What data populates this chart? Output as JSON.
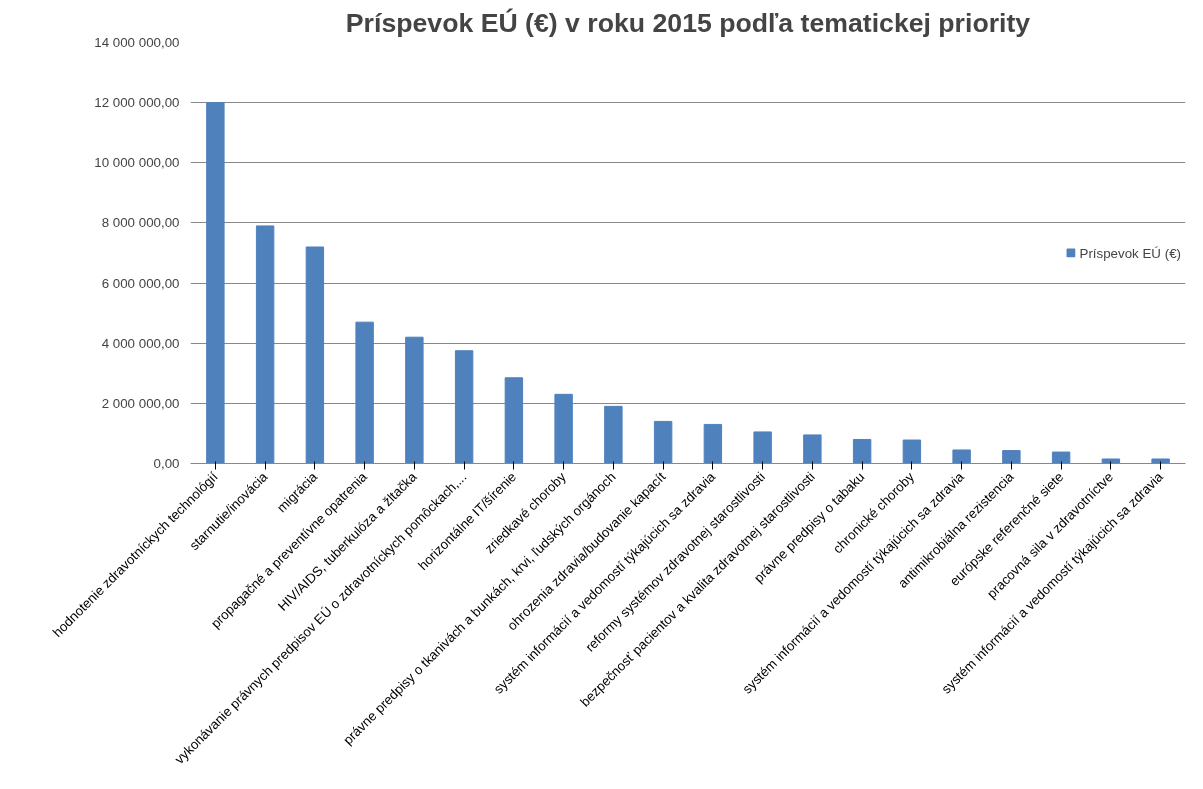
{
  "chart_data": {
    "type": "bar",
    "title": "Príspevok EÚ (€) v roku 2015 podľa tematickej priority",
    "categories": [
      "hodnotenie zdravotníckych technológií",
      "starnutie/inovácia",
      "migrácia",
      "propagačné a preventívne opatrenia",
      "HIV/AIDS, tuberkulóza a žltačka",
      "vykonávanie právnych predpisov EÚ o zdravotníckych pomôckach,...",
      "horizontálne IT/šírenie",
      "zriedkavé choroby",
      "právne predpisy o tkanivách a bunkách, krvi, ľudských orgánoch",
      "ohrozenia zdravia/budovanie kapacít",
      "systém informácií a vedomostí týkajúcich sa zdravia",
      "reformy systémov zdravotnej starostlivosti",
      "bezpečnosť pacientov a kvalita zdravotnej starostlivosti",
      "právne predpisy o tabaku",
      "chronické choroby",
      "systém informácií a vedomostí týkajúcich sa zdravia",
      "antimikrobiálna rezistencia",
      "európske referenčné siete",
      "pracovná sila v zdravotníctve",
      "systém informácií a vedomostí týkajúcich sa zdravia"
    ],
    "series": [
      {
        "name": "Príspevok EÚ (€)",
        "color": "#4f81bd",
        "values": [
          12000000,
          7900000,
          7200000,
          4700000,
          4200000,
          3750000,
          2850000,
          2300000,
          1900000,
          1400000,
          1300000,
          1050000,
          950000,
          800000,
          780000,
          450000,
          430000,
          380000,
          150000,
          150000
        ]
      }
    ],
    "ylim": [
      0,
      14000000
    ],
    "yticks": [
      {
        "value": 0,
        "label": "0,00"
      },
      {
        "value": 2000000,
        "label": "2 000 000,00"
      },
      {
        "value": 4000000,
        "label": "4 000 000,00"
      },
      {
        "value": 6000000,
        "label": "6 000 000,00"
      },
      {
        "value": 8000000,
        "label": "8 000 000,00"
      },
      {
        "value": 10000000,
        "label": "10 000 000,00"
      },
      {
        "value": 12000000,
        "label": "12 000 000,00"
      },
      {
        "value": 14000000,
        "label": "14 000 000,00"
      }
    ],
    "grid": "y",
    "legend": "right"
  }
}
